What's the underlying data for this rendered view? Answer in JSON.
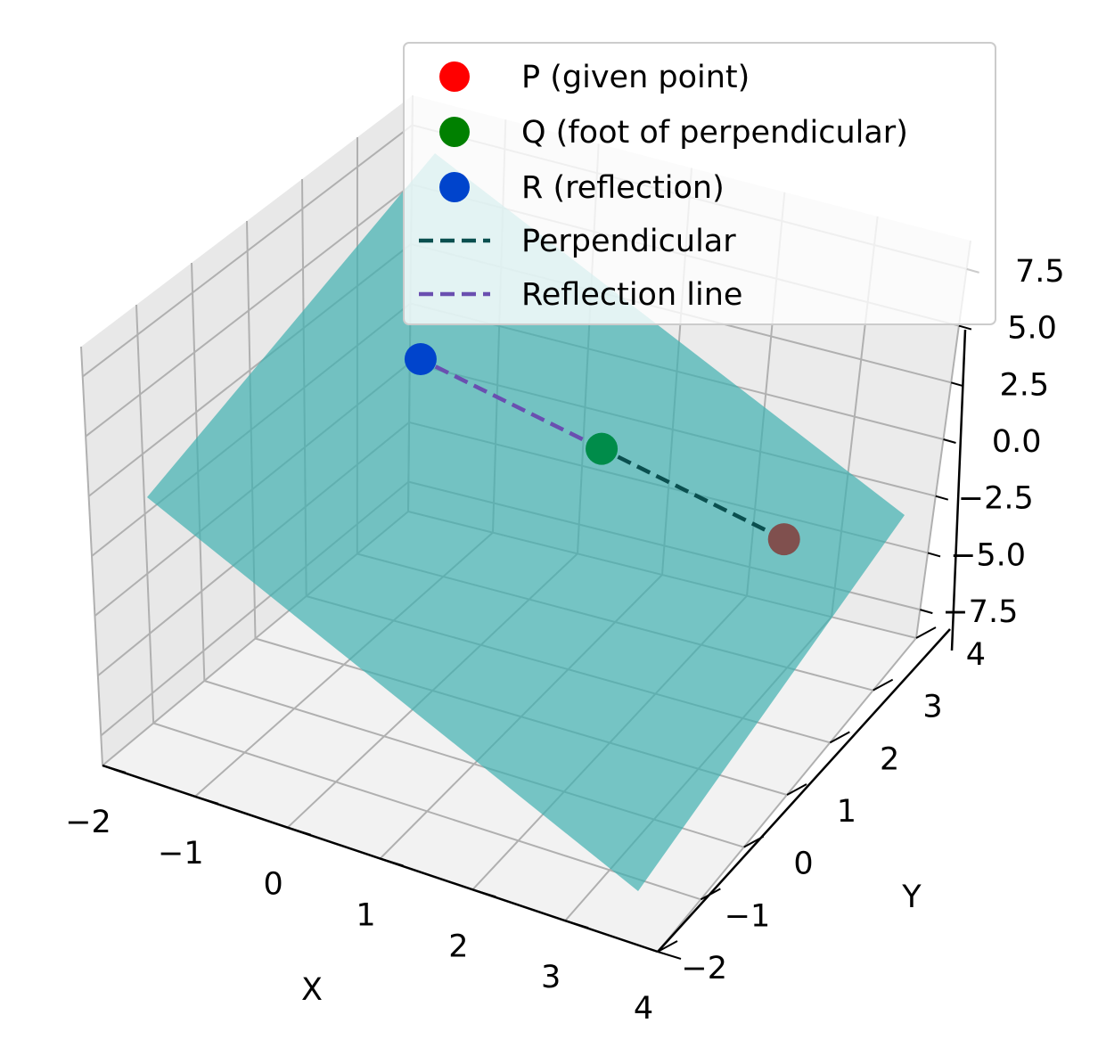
{
  "chart_data": {
    "type": "scatter",
    "projection": "3d",
    "title": "",
    "xlabel": "X",
    "ylabel": "Y",
    "zlabel": "",
    "xlim": [
      -2,
      4
    ],
    "ylim": [
      -2,
      4
    ],
    "zlim": [
      -8.75,
      8.75
    ],
    "x_ticks": [
      "−2",
      "−1",
      "0",
      "1",
      "2",
      "3",
      "4"
    ],
    "y_ticks": [
      "−2",
      "−1",
      "0",
      "1",
      "2",
      "3",
      "4"
    ],
    "z_ticks": [
      "−7.5",
      "−5.0",
      "−2.5",
      "0.0",
      "2.5",
      "5.0",
      "7.5"
    ],
    "grid": true,
    "legend_position": "upper-right",
    "plane": {
      "color": "#40b0b0",
      "alpha": 0.7
    },
    "points": [
      {
        "name": "P (given point)",
        "x": 3,
        "y": 1,
        "z": 2,
        "color": "#ff0000"
      },
      {
        "name": "Q (foot of perpendicular)",
        "x": 1.33,
        "y": 1.67,
        "z": 2.67,
        "color": "#008000"
      },
      {
        "name": "R (reflection)",
        "x": -0.33,
        "y": 2.33,
        "z": 3.33,
        "color": "#0044cc"
      }
    ],
    "lines": [
      {
        "name": "Perpendicular",
        "color": "#0a4f4f",
        "dash": "dashed",
        "from": "P",
        "to": "Q"
      },
      {
        "name": "Reflection line",
        "color": "#6a4fb0",
        "dash": "dashed",
        "from": "Q",
        "to": "R"
      }
    ]
  }
}
